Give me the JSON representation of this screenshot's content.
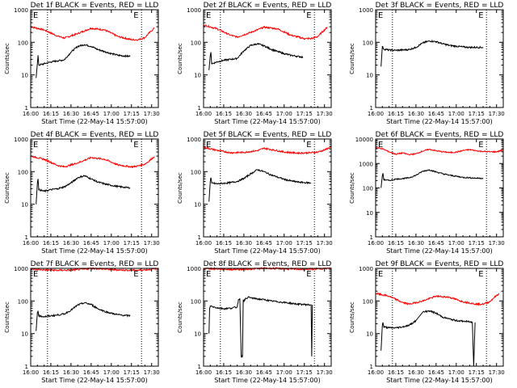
{
  "chart_data": {
    "type": "line",
    "start_time_label": "Start Time (22-May-14 15:57:00)",
    "ylabel": "Counts/sec",
    "x_ticks": [
      "16:00",
      "16:15",
      "16:30",
      "16:45",
      "17:00",
      "17:15",
      "17:30"
    ],
    "x_tick_minutes": [
      0,
      15,
      30,
      45,
      60,
      75,
      90
    ],
    "xlim_minutes": [
      0,
      95
    ],
    "dotted_marker_minutes": [
      12.5,
      82.5
    ],
    "marker_letter": "E",
    "colors": {
      "events": "#000000",
      "lld": "#ff0000",
      "markers": "#000000"
    },
    "panels": [
      {
        "title": "Det 1f BLACK = Events, RED = LLD",
        "ylim": [
          1,
          1000
        ],
        "y_ticks": [
          "1",
          "10",
          "100",
          "1000"
        ],
        "series": [
          {
            "role": "lld",
            "x": [
              0,
              10,
              20,
              25,
              35,
              45,
              55,
              65,
              75,
              80,
              85,
              88,
              92
            ],
            "y": [
              300,
              240,
              155,
              135,
              185,
              270,
              240,
              150,
              120,
              120,
              140,
              190,
              270
            ]
          },
          {
            "role": "events",
            "x": [
              4,
              5,
              5.5,
              6,
              10,
              15,
              20,
              25,
              30,
              35,
              40,
              45,
              50,
              55,
              60,
              65,
              70,
              74
            ],
            "y": [
              8,
              23,
              40,
              20,
              22,
              25,
              27,
              29,
              50,
              75,
              85,
              75,
              60,
              52,
              45,
              40,
              38,
              37
            ]
          }
        ]
      },
      {
        "title": "Det 2f BLACK = Events, RED = LLD",
        "ylim": [
          1,
          1000
        ],
        "y_ticks": [
          "1",
          "10",
          "100",
          "1000"
        ],
        "series": [
          {
            "role": "lld",
            "x": [
              0,
              10,
              20,
              25,
              35,
              45,
              55,
              65,
              75,
              80,
              85,
              88,
              92
            ],
            "y": [
              340,
              260,
              165,
              145,
              200,
              290,
              260,
              165,
              130,
              130,
              150,
              200,
              290
            ]
          },
          {
            "role": "events",
            "x": [
              4,
              5,
              5.5,
              6,
              10,
              15,
              20,
              25,
              30,
              35,
              40,
              45,
              50,
              55,
              60,
              65,
              70,
              74
            ],
            "y": [
              14,
              40,
              50,
              22,
              25,
              28,
              30,
              32,
              55,
              80,
              90,
              78,
              62,
              52,
              45,
              40,
              37,
              35
            ]
          }
        ]
      },
      {
        "title": "Det 3f BLACK = Events, RED = LLD",
        "ylim": [
          1,
          1000
        ],
        "y_ticks": [
          "1",
          "10",
          "100",
          "1000"
        ],
        "series": [
          {
            "role": "events",
            "x": [
              4,
              5,
              6,
              10,
              15,
              20,
              25,
              30,
              35,
              40,
              45,
              50,
              55,
              60,
              65,
              70,
              75,
              80
            ],
            "y": [
              18,
              75,
              62,
              58,
              57,
              58,
              60,
              70,
              95,
              110,
              105,
              90,
              80,
              76,
              72,
              70,
              70,
              70
            ]
          }
        ]
      },
      {
        "title": "Det 4f BLACK = Events, RED = LLD",
        "ylim": [
          1,
          1000
        ],
        "y_ticks": [
          "1",
          "10",
          "100",
          "1000"
        ],
        "series": [
          {
            "role": "lld",
            "x": [
              0,
              10,
              20,
              25,
              35,
              45,
              55,
              65,
              75,
              80,
              85,
              88,
              92
            ],
            "y": [
              300,
              240,
              155,
              140,
              185,
              270,
              240,
              160,
              140,
              150,
              170,
              210,
              290
            ]
          },
          {
            "role": "events",
            "x": [
              4,
              5,
              5.5,
              6,
              10,
              15,
              20,
              25,
              30,
              35,
              40,
              45,
              50,
              55,
              60,
              65,
              70,
              74
            ],
            "y": [
              10,
              45,
              60,
              28,
              25,
              28,
              30,
              34,
              45,
              65,
              75,
              60,
              48,
              42,
              38,
              35,
              33,
              32
            ]
          }
        ]
      },
      {
        "title": "Det 5f BLACK = Events, RED = LLD",
        "ylim": [
          1,
          1000
        ],
        "y_ticks": [
          "1",
          "10",
          "100",
          "1000"
        ],
        "series": [
          {
            "role": "lld",
            "x": [
              0,
              10,
              20,
              30,
              40,
              45,
              50,
              60,
              70,
              80,
              85,
              90,
              95
            ],
            "y": [
              560,
              450,
              380,
              390,
              440,
              520,
              480,
              400,
              370,
              380,
              400,
              460,
              580
            ]
          },
          {
            "role": "events",
            "x": [
              4,
              5,
              5.5,
              6,
              10,
              15,
              20,
              25,
              30,
              35,
              40,
              45,
              50,
              55,
              60,
              65,
              70,
              75,
              80
            ],
            "y": [
              12,
              50,
              65,
              45,
              42,
              44,
              46,
              50,
              62,
              85,
              115,
              100,
              80,
              68,
              58,
              52,
              48,
              46,
              45
            ]
          }
        ]
      },
      {
        "title": "Det 6f BLACK = Events, RED = LLD",
        "ylim": [
          1,
          10000
        ],
        "y_ticks": [
          "1",
          "10",
          "100",
          "1000",
          "10000"
        ],
        "series": [
          {
            "role": "lld",
            "x": [
              0,
              5,
              10,
              15,
              20,
              25,
              30,
              35,
              40,
              45,
              50,
              55,
              60,
              65,
              70,
              75,
              80,
              85,
              90,
              95
            ],
            "y": [
              4500,
              4000,
              3000,
              2400,
              2700,
              2300,
              2500,
              3200,
              3800,
              3300,
              3000,
              2800,
              2900,
              3400,
              3700,
              3300,
              3100,
              3000,
              3000,
              3600
            ]
          },
          {
            "role": "events",
            "x": [
              4,
              5,
              5.5,
              6,
              10,
              15,
              20,
              25,
              30,
              35,
              40,
              45,
              50,
              55,
              60,
              65,
              70,
              75,
              80
            ],
            "y": [
              100,
              320,
              400,
              220,
              200,
              230,
              240,
              260,
              330,
              480,
              550,
              450,
              380,
              330,
              300,
              270,
              260,
              250,
              250
            ]
          }
        ]
      },
      {
        "title": "Det 7f BLACK = Events, RED = LLD",
        "ylim": [
          1,
          1000
        ],
        "y_ticks": [
          "1",
          "10",
          "100",
          "1000"
        ],
        "series": [
          {
            "role": "lld",
            "x": [
              0,
              10,
              20,
              30,
              40,
              45,
              50,
              60,
              70,
              80,
              85,
              90,
              95
            ],
            "y": [
              950,
              900,
              870,
              880,
              950,
              1000,
              980,
              920,
              880,
              880,
              900,
              940,
              1000
            ]
          },
          {
            "role": "events",
            "x": [
              4,
              5,
              5.5,
              6,
              10,
              15,
              20,
              25,
              30,
              35,
              40,
              45,
              50,
              55,
              60,
              65,
              70,
              74
            ],
            "y": [
              12,
              45,
              50,
              35,
              33,
              35,
              37,
              40,
              52,
              75,
              88,
              78,
              58,
              48,
              42,
              38,
              36,
              35
            ]
          }
        ]
      },
      {
        "title": "Det 8f BLACK = Events, RED = LLD",
        "ylim": [
          1,
          1000
        ],
        "y_ticks": [
          "1",
          "10",
          "100",
          "1000"
        ],
        "series": [
          {
            "role": "lld",
            "x": [
              0,
              10,
              20,
              30,
              40,
              45,
              50,
              60,
              70,
              80,
              85,
              90,
              95
            ],
            "y": [
              1000,
              960,
              930,
              940,
              980,
              1000,
              1000,
              970,
              940,
              940,
              960,
              990,
              1000
            ]
          },
          {
            "role": "events",
            "x": [
              4,
              4.5,
              5,
              10,
              15,
              20,
              25,
              26,
              27,
              28,
              29,
              29.5,
              30,
              30.5,
              33,
              35,
              40,
              45,
              50,
              55,
              60,
              65,
              70,
              75,
              80,
              80.5,
              81
            ],
            "y": [
              10,
              60,
              70,
              62,
              58,
              60,
              65,
              110,
              120,
              2,
              2,
              110,
              95,
              110,
              130,
              125,
              115,
              110,
              100,
              95,
              90,
              85,
              80,
              78,
              76,
              2,
              76
            ]
          }
        ]
      },
      {
        "title": "Det 9f BLACK = Events, RED = LLD",
        "ylim": [
          1,
          1000
        ],
        "y_ticks": [
          "1",
          "10",
          "100",
          "1000"
        ],
        "series": [
          {
            "role": "lld",
            "x": [
              0,
              10,
              20,
              25,
              35,
              45,
              55,
              65,
              75,
              80,
              85,
              88,
              92
            ],
            "y": [
              170,
              140,
              90,
              80,
              100,
              140,
              130,
              95,
              80,
              80,
              95,
              125,
              170
            ]
          },
          {
            "role": "events",
            "x": [
              4,
              5,
              5.5,
              6,
              10,
              15,
              20,
              25,
              30,
              35,
              40,
              45,
              50,
              55,
              60,
              65,
              70,
              72,
              73,
              74
            ],
            "y": [
              3,
              18,
              22,
              16,
              15,
              15,
              16,
              18,
              25,
              45,
              50,
              42,
              32,
              28,
              25,
              24,
              23,
              22,
              1,
              22
            ]
          }
        ]
      }
    ]
  }
}
